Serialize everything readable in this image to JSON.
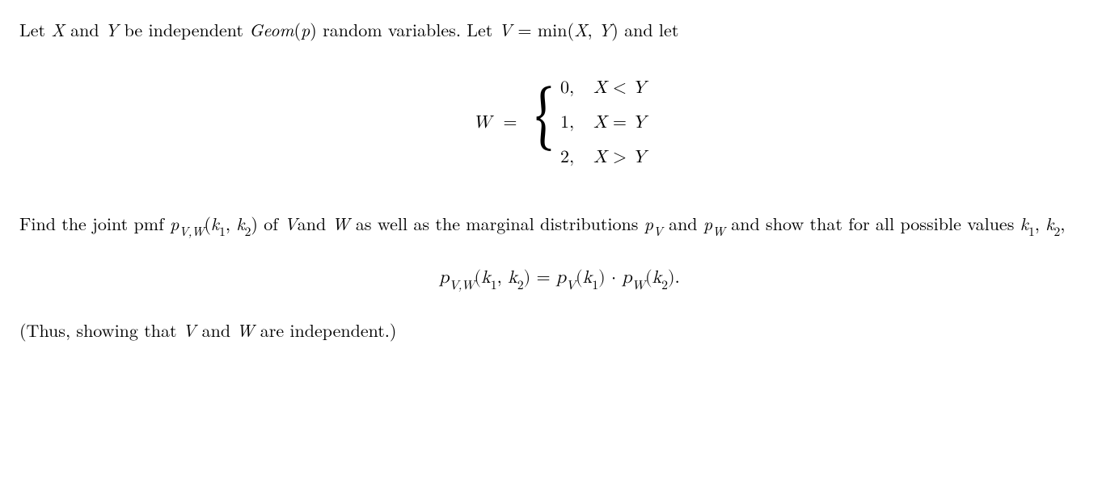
{
  "p1_a": "Let ",
  "p1_b": " and ",
  "p1_c": " be independent ",
  "p1_d": " random variables. Let ",
  "p1_e": " and let",
  "X": "X",
  "Y": "Y",
  "V": "V",
  "W": "W",
  "Geom": "Geom",
  "p_param": "p",
  "eq1_lhs_a": "W",
  "eq1_eq": "=",
  "min_fn": "min",
  "case_v0": "0,",
  "case_c0_a": "X < Y",
  "case_v1": "1,",
  "case_c1_a": "X = Y",
  "case_v2": "2,",
  "case_c2_a": "X > Y",
  "p2_a": "Find the joint pmf ",
  "p2_b": " of ",
  "p2_c": "and ",
  "p2_d": " as well as the marginal distributions ",
  "p2_e": " and ",
  "p2_f": " and show that for all possible values ",
  "p2_g": ",",
  "pmf_sym": "p",
  "sub_VW": "V,W",
  "sub_V": "V",
  "sub_W": "W",
  "k1": "k",
  "k1_sub": "1",
  "k2": "k",
  "k2_sub": "2",
  "eq2_dot": " · ",
  "p3_a": "(Thus, showing that ",
  "p3_b": " and ",
  "p3_c": " are independent.)"
}
